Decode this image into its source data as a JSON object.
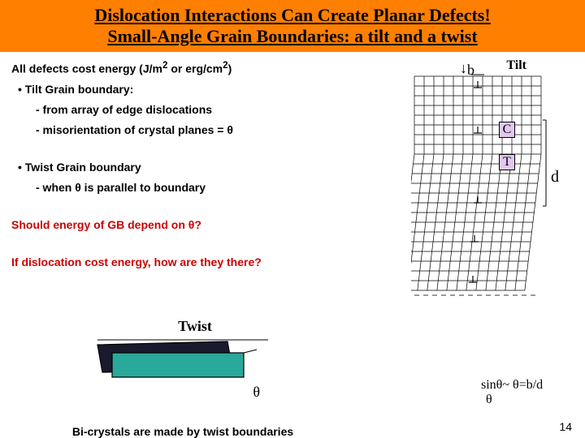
{
  "header": {
    "line1": "Dislocation Interactions Can Create Planar Defects!",
    "line2": "Small-Angle Grain Boundaries: a tilt and a twist"
  },
  "main": {
    "line1a": "All defects cost energy (J/m",
    "line1b": " or erg/cm",
    "line1c": ")",
    "sup2": "2",
    "tiltHead": "• Tilt Grain boundary:",
    "tiltA": "- from array of edge dislocations",
    "tiltB": "- misorientation of crystal planes = θ",
    "twistHead": "• Twist Grain boundary",
    "twistA": "- when θ is parallel to boundary",
    "q1": "Should energy of GB depend on θ?",
    "q2": "If dislocation cost energy, how are they there?"
  },
  "tilt": {
    "title": "Tilt",
    "b": "b",
    "C": "C",
    "T": "T",
    "d": "d",
    "sin": "sinθ~ θ=b/d",
    "theta": "θ",
    "grid": {
      "rows": 22,
      "cols": 13,
      "cell": 12,
      "tiltRows": 8
    },
    "colors": {
      "box": "#e0c8f0",
      "line": "#000000"
    }
  },
  "twist": {
    "title": "Twist",
    "theta": "θ",
    "caption": "Bi-crystals are made by twist boundaries",
    "colors": {
      "slabDark": "#1a1a2e",
      "slabTeal": "#2aa89a",
      "outline": "#000000"
    }
  },
  "page": "14"
}
